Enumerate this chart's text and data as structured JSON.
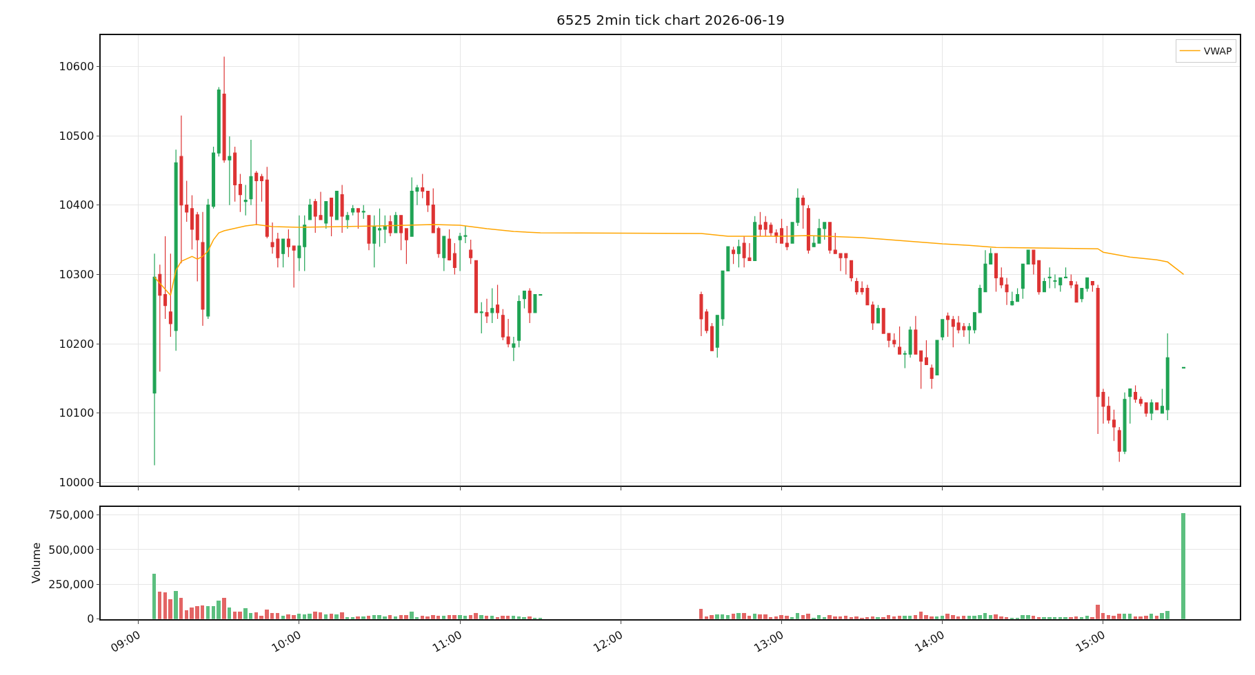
{
  "chart_data": [
    {
      "type": "candlestick",
      "title": "6525 2min tick chart 2026-06-19",
      "legend": "top right",
      "grid": true,
      "tick_labels": "y",
      "xlim": [
        "2026-06-19T08:46",
        "2026-06-19T15:51"
      ],
      "xticks": [
        {
          "value": "2026-06-19T09:00",
          "label": null
        },
        {
          "value": "2026-06-19T10:00",
          "label": null
        },
        {
          "value": "2026-06-19T11:00",
          "label": null
        },
        {
          "value": "2026-06-19T12:00",
          "label": null
        },
        {
          "value": "2026-06-19T13:00",
          "label": null
        },
        {
          "value": "2026-06-19T14:00",
          "label": null
        },
        {
          "value": "2026-06-19T15:00",
          "label": null
        }
      ],
      "ylim": [
        9996,
        10645
      ],
      "yticks": [
        10000,
        10100,
        10200,
        10300,
        10400,
        10500,
        10600
      ],
      "x": [
        "2026-06-19T09:06",
        "2026-06-19T09:08",
        "2026-06-19T09:10",
        "2026-06-19T09:12",
        "2026-06-19T09:14",
        "2026-06-19T09:16",
        "2026-06-19T09:18",
        "2026-06-19T09:20",
        "2026-06-19T09:22",
        "2026-06-19T09:24",
        "2026-06-19T09:26",
        "2026-06-19T09:28",
        "2026-06-19T09:30",
        "2026-06-19T09:32",
        "2026-06-19T09:34",
        "2026-06-19T09:36",
        "2026-06-19T09:38",
        "2026-06-19T09:40",
        "2026-06-19T09:42",
        "2026-06-19T09:44",
        "2026-06-19T09:46",
        "2026-06-19T09:48",
        "2026-06-19T09:50",
        "2026-06-19T09:52",
        "2026-06-19T09:54",
        "2026-06-19T09:56",
        "2026-06-19T09:58",
        "2026-06-19T10:00",
        "2026-06-19T10:02",
        "2026-06-19T10:04",
        "2026-06-19T10:06",
        "2026-06-19T10:08",
        "2026-06-19T10:10",
        "2026-06-19T10:12",
        "2026-06-19T10:14",
        "2026-06-19T10:16",
        "2026-06-19T10:18",
        "2026-06-19T10:20",
        "2026-06-19T10:22",
        "2026-06-19T10:24",
        "2026-06-19T10:26",
        "2026-06-19T10:28",
        "2026-06-19T10:30",
        "2026-06-19T10:32",
        "2026-06-19T10:34",
        "2026-06-19T10:36",
        "2026-06-19T10:38",
        "2026-06-19T10:40",
        "2026-06-19T10:42",
        "2026-06-19T10:44",
        "2026-06-19T10:46",
        "2026-06-19T10:48",
        "2026-06-19T10:50",
        "2026-06-19T10:52",
        "2026-06-19T10:54",
        "2026-06-19T10:56",
        "2026-06-19T10:58",
        "2026-06-19T11:00",
        "2026-06-19T11:02",
        "2026-06-19T11:04",
        "2026-06-19T11:06",
        "2026-06-19T11:08",
        "2026-06-19T11:10",
        "2026-06-19T11:12",
        "2026-06-19T11:14",
        "2026-06-19T11:16",
        "2026-06-19T11:18",
        "2026-06-19T11:20",
        "2026-06-19T11:22",
        "2026-06-19T11:24",
        "2026-06-19T11:26",
        "2026-06-19T11:28",
        "2026-06-19T11:30",
        "2026-06-19T12:30",
        "2026-06-19T12:32",
        "2026-06-19T12:34",
        "2026-06-19T12:36",
        "2026-06-19T12:38",
        "2026-06-19T12:40",
        "2026-06-19T12:42",
        "2026-06-19T12:44",
        "2026-06-19T12:46",
        "2026-06-19T12:48",
        "2026-06-19T12:50",
        "2026-06-19T12:52",
        "2026-06-19T12:54",
        "2026-06-19T12:56",
        "2026-06-19T12:58",
        "2026-06-19T13:00",
        "2026-06-19T13:02",
        "2026-06-19T13:04",
        "2026-06-19T13:06",
        "2026-06-19T13:08",
        "2026-06-19T13:10",
        "2026-06-19T13:12",
        "2026-06-19T13:14",
        "2026-06-19T13:16",
        "2026-06-19T13:18",
        "2026-06-19T13:20",
        "2026-06-19T13:22",
        "2026-06-19T13:24",
        "2026-06-19T13:26",
        "2026-06-19T13:28",
        "2026-06-19T13:30",
        "2026-06-19T13:32",
        "2026-06-19T13:34",
        "2026-06-19T13:36",
        "2026-06-19T13:38",
        "2026-06-19T13:40",
        "2026-06-19T13:42",
        "2026-06-19T13:44",
        "2026-06-19T13:46",
        "2026-06-19T13:48",
        "2026-06-19T13:50",
        "2026-06-19T13:52",
        "2026-06-19T13:54",
        "2026-06-19T13:56",
        "2026-06-19T13:58",
        "2026-06-19T14:00",
        "2026-06-19T14:02",
        "2026-06-19T14:04",
        "2026-06-19T14:06",
        "2026-06-19T14:08",
        "2026-06-19T14:10",
        "2026-06-19T14:12",
        "2026-06-19T14:14",
        "2026-06-19T14:16",
        "2026-06-19T14:18",
        "2026-06-19T14:20",
        "2026-06-19T14:22",
        "2026-06-19T14:24",
        "2026-06-19T14:26",
        "2026-06-19T14:28",
        "2026-06-19T14:30",
        "2026-06-19T14:32",
        "2026-06-19T14:34",
        "2026-06-19T14:36",
        "2026-06-19T14:38",
        "2026-06-19T14:40",
        "2026-06-19T14:42",
        "2026-06-19T14:44",
        "2026-06-19T14:46",
        "2026-06-19T14:48",
        "2026-06-19T14:50",
        "2026-06-19T14:52",
        "2026-06-19T14:54",
        "2026-06-19T14:56",
        "2026-06-19T14:58",
        "2026-06-19T15:00",
        "2026-06-19T15:02",
        "2026-06-19T15:04",
        "2026-06-19T15:06",
        "2026-06-19T15:08",
        "2026-06-19T15:10",
        "2026-06-19T15:12",
        "2026-06-19T15:14",
        "2026-06-19T15:16",
        "2026-06-19T15:18",
        "2026-06-19T15:20",
        "2026-06-19T15:22",
        "2026-06-19T15:24",
        "2026-06-19T15:30"
      ],
      "ohlc": [
        [
          10129,
          10330,
          10025,
          10296
        ],
        [
          10300,
          10314,
          10160,
          10270
        ],
        [
          10271,
          10355,
          10236,
          10255
        ],
        [
          10246,
          10330,
          10210,
          10229
        ],
        [
          10219,
          10480,
          10190,
          10461
        ],
        [
          10470,
          10529,
          10316,
          10400
        ],
        [
          10400,
          10435,
          10376,
          10390
        ],
        [
          10395,
          10414,
          10336,
          10365
        ],
        [
          10386,
          10390,
          10290,
          10350
        ],
        [
          10346,
          10390,
          10226,
          10250
        ],
        [
          10240,
          10409,
          10236,
          10400
        ],
        [
          10398,
          10484,
          10395,
          10475
        ],
        [
          10475,
          10570,
          10470,
          10566
        ],
        [
          10560,
          10614,
          10461,
          10465
        ],
        [
          10465,
          10499,
          10400,
          10470
        ],
        [
          10475,
          10484,
          10405,
          10429
        ],
        [
          10430,
          10445,
          10390,
          10415
        ],
        [
          10405,
          10429,
          10385,
          10407
        ],
        [
          10409,
          10494,
          10400,
          10441
        ],
        [
          10446,
          10449,
          10372,
          10435
        ],
        [
          10441,
          10445,
          10405,
          10435
        ],
        [
          10436,
          10455,
          10352,
          10355
        ],
        [
          10346,
          10375,
          10330,
          10340
        ],
        [
          10351,
          10360,
          10310,
          10324
        ],
        [
          10330,
          10351,
          10310,
          10351
        ],
        [
          10351,
          10365,
          10325,
          10340
        ],
        [
          10341,
          10341,
          10281,
          10335
        ],
        [
          10324,
          10385,
          10305,
          10341
        ],
        [
          10340,
          10385,
          10305,
          10371
        ],
        [
          10379,
          10409,
          10379,
          10400
        ],
        [
          10405,
          10409,
          10360,
          10384
        ],
        [
          10385,
          10419,
          10379,
          10379
        ],
        [
          10374,
          10405,
          10366,
          10405
        ],
        [
          10410,
          10410,
          10355,
          10384
        ],
        [
          10379,
          10420,
          10379,
          10420
        ],
        [
          10415,
          10429,
          10360,
          10384
        ],
        [
          10379,
          10390,
          10366,
          10385
        ],
        [
          10390,
          10400,
          10385,
          10395
        ],
        [
          10395,
          10395,
          10366,
          10390
        ],
        [
          10390,
          10400,
          10380,
          10391
        ],
        [
          10385,
          10385,
          10335,
          10345
        ],
        [
          10345,
          10385,
          10310,
          10369
        ],
        [
          10364,
          10395,
          10340,
          10366
        ],
        [
          10365,
          10385,
          10345,
          10370
        ],
        [
          10376,
          10385,
          10355,
          10360
        ],
        [
          10360,
          10390,
          10360,
          10385
        ],
        [
          10385,
          10385,
          10335,
          10360
        ],
        [
          10366,
          10366,
          10315,
          10350
        ],
        [
          10355,
          10440,
          10355,
          10420
        ],
        [
          10420,
          10429,
          10400,
          10425
        ],
        [
          10425,
          10445,
          10410,
          10420
        ],
        [
          10420,
          10420,
          10390,
          10400
        ],
        [
          10400,
          10424,
          10360,
          10360
        ],
        [
          10366,
          10369,
          10324,
          10330
        ],
        [
          10324,
          10355,
          10305,
          10355
        ],
        [
          10351,
          10365,
          10320,
          10321
        ],
        [
          10330,
          10345,
          10300,
          10310
        ],
        [
          10350,
          10360,
          10305,
          10355
        ],
        [
          10355,
          10370,
          10345,
          10356
        ],
        [
          10335,
          10350,
          10315,
          10324
        ],
        [
          10320,
          10320,
          10245,
          10245
        ],
        [
          10245,
          10260,
          10215,
          10246
        ],
        [
          10245,
          10265,
          10230,
          10240
        ],
        [
          10245,
          10280,
          10230,
          10251
        ],
        [
          10256,
          10285,
          10236,
          10245
        ],
        [
          10241,
          10250,
          10205,
          10210
        ],
        [
          10210,
          10236,
          10195,
          10200
        ],
        [
          10195,
          10210,
          10175,
          10200
        ],
        [
          10205,
          10270,
          10195,
          10261
        ],
        [
          10265,
          10276,
          10251,
          10276
        ],
        [
          10276,
          10280,
          10230,
          10245
        ],
        [
          10245,
          10271,
          10245,
          10271
        ],
        [
          10270,
          10271,
          10270,
          10271
        ],
        [
          10271,
          10275,
          10211,
          10236
        ],
        [
          10246,
          10250,
          10215,
          10219
        ],
        [
          10225,
          10230,
          10190,
          10190
        ],
        [
          10195,
          10241,
          10180,
          10241
        ],
        [
          10236,
          10305,
          10226,
          10305
        ],
        [
          10305,
          10340,
          10305,
          10340
        ],
        [
          10335,
          10340,
          10315,
          10330
        ],
        [
          10330,
          10350,
          10310,
          10340
        ],
        [
          10345,
          10355,
          10310,
          10324
        ],
        [
          10324,
          10345,
          10320,
          10320
        ],
        [
          10320,
          10384,
          10320,
          10375
        ],
        [
          10371,
          10390,
          10355,
          10365
        ],
        [
          10375,
          10384,
          10355,
          10365
        ],
        [
          10371,
          10375,
          10355,
          10360
        ],
        [
          10360,
          10365,
          10345,
          10355
        ],
        [
          10366,
          10380,
          10345,
          10345
        ],
        [
          10345,
          10370,
          10335,
          10340
        ],
        [
          10345,
          10375,
          10345,
          10375
        ],
        [
          10375,
          10424,
          10370,
          10410
        ],
        [
          10410,
          10414,
          10366,
          10400
        ],
        [
          10395,
          10400,
          10330,
          10335
        ],
        [
          10340,
          10355,
          10340,
          10345
        ],
        [
          10345,
          10380,
          10345,
          10366
        ],
        [
          10366,
          10375,
          10350,
          10375
        ],
        [
          10375,
          10375,
          10330,
          10335
        ],
        [
          10335,
          10360,
          10330,
          10330
        ],
        [
          10330,
          10330,
          10305,
          10324
        ],
        [
          10330,
          10330,
          10300,
          10324
        ],
        [
          10320,
          10320,
          10290,
          10295
        ],
        [
          10290,
          10295,
          10271,
          10275
        ],
        [
          10280,
          10290,
          10271,
          10275
        ],
        [
          10280,
          10285,
          10256,
          10256
        ],
        [
          10256,
          10261,
          10220,
          10230
        ],
        [
          10230,
          10256,
          10230,
          10251
        ],
        [
          10251,
          10251,
          10215,
          10215
        ],
        [
          10215,
          10215,
          10195,
          10205
        ],
        [
          10205,
          10215,
          10195,
          10200
        ],
        [
          10195,
          10225,
          10185,
          10185
        ],
        [
          10185,
          10190,
          10165,
          10186
        ],
        [
          10185,
          10225,
          10180,
          10220
        ],
        [
          10220,
          10240,
          10185,
          10185
        ],
        [
          10190,
          10190,
          10135,
          10175
        ],
        [
          10180,
          10205,
          10170,
          10170
        ],
        [
          10165,
          10170,
          10135,
          10150
        ],
        [
          10155,
          10205,
          10155,
          10205
        ],
        [
          10210,
          10235,
          10205,
          10235
        ],
        [
          10240,
          10245,
          10210,
          10235
        ],
        [
          10235,
          10240,
          10195,
          10225
        ],
        [
          10230,
          10240,
          10215,
          10220
        ],
        [
          10225,
          10230,
          10210,
          10220
        ],
        [
          10220,
          10230,
          10200,
          10225
        ],
        [
          10220,
          10245,
          10215,
          10245
        ],
        [
          10245,
          10285,
          10245,
          10280
        ],
        [
          10275,
          10335,
          10275,
          10315
        ],
        [
          10315,
          10338,
          10315,
          10330
        ],
        [
          10330,
          10330,
          10275,
          10295
        ],
        [
          10295,
          10310,
          10280,
          10285
        ],
        [
          10285,
          10295,
          10256,
          10275
        ],
        [
          10256,
          10275,
          10255,
          10261
        ],
        [
          10261,
          10280,
          10261,
          10271
        ],
        [
          10280,
          10315,
          10265,
          10315
        ],
        [
          10315,
          10335,
          10315,
          10335
        ],
        [
          10335,
          10335,
          10300,
          10315
        ],
        [
          10320,
          10320,
          10271,
          10275
        ],
        [
          10275,
          10295,
          10275,
          10290
        ],
        [
          10295,
          10310,
          10280,
          10296
        ],
        [
          10290,
          10300,
          10280,
          10291
        ],
        [
          10285,
          10295,
          10275,
          10295
        ],
        [
          10295,
          10310,
          10295,
          10296
        ],
        [
          10290,
          10300,
          10280,
          10285
        ],
        [
          10285,
          10290,
          10260,
          10260
        ],
        [
          10265,
          10280,
          10260,
          10280
        ],
        [
          10280,
          10295,
          10275,
          10295
        ],
        [
          10290,
          10290,
          10275,
          10285
        ],
        [
          10280,
          10285,
          10070,
          10124
        ],
        [
          10130,
          10135,
          10085,
          10110
        ],
        [
          10110,
          10124,
          10085,
          10090
        ],
        [
          10090,
          10105,
          10060,
          10080
        ],
        [
          10075,
          10080,
          10030,
          10045
        ],
        [
          10045,
          10130,
          10041,
          10120
        ],
        [
          10124,
          10135,
          10085,
          10135
        ],
        [
          10130,
          10140,
          10115,
          10120
        ],
        [
          10120,
          10124,
          10110,
          10114
        ],
        [
          10115,
          10115,
          10095,
          10100
        ],
        [
          10100,
          10120,
          10090,
          10115
        ],
        [
          10115,
          10115,
          10105,
          10105
        ],
        [
          10100,
          10135,
          10100,
          10110
        ],
        [
          10105,
          10215,
          10090,
          10180
        ],
        [
          10165,
          10166,
          10165,
          10166
        ]
      ],
      "colors": [
        "#1fa354",
        "#dd3333",
        "#dd3333",
        "#dd3333",
        "#1fa354",
        "#dd3333",
        "#dd3333",
        "#dd3333",
        "#dd3333",
        "#dd3333",
        "#1fa354",
        "#1fa354",
        "#1fa354",
        "#dd3333",
        "#1fa354",
        "#dd3333",
        "#dd3333",
        "#1fa354",
        "#1fa354",
        "#dd3333",
        "#dd3333",
        "#dd3333",
        "#dd3333",
        "#dd3333",
        "#1fa354",
        "#dd3333",
        "#dd3333",
        "#1fa354",
        "#1fa354",
        "#1fa354",
        "#dd3333",
        "#dd3333",
        "#1fa354",
        "#dd3333",
        "#1fa354",
        "#dd3333",
        "#1fa354",
        "#1fa354",
        "#dd3333",
        "#1fa354",
        "#dd3333",
        "#1fa354",
        "#1fa354",
        "#1fa354",
        "#dd3333",
        "#1fa354",
        "#dd3333",
        "#dd3333",
        "#1fa354",
        "#1fa354",
        "#dd3333",
        "#dd3333",
        "#dd3333",
        "#dd3333",
        "#1fa354",
        "#dd3333",
        "#dd3333",
        "#1fa354",
        "#1fa354",
        "#dd3333",
        "#dd3333",
        "#1fa354",
        "#dd3333",
        "#1fa354",
        "#dd3333",
        "#dd3333",
        "#dd3333",
        "#1fa354",
        "#1fa354",
        "#1fa354",
        "#dd3333",
        "#1fa354",
        "#1fa354",
        "#dd3333",
        "#dd3333",
        "#dd3333",
        "#1fa354",
        "#1fa354",
        "#1fa354",
        "#dd3333",
        "#1fa354",
        "#dd3333",
        "#dd3333",
        "#1fa354",
        "#dd3333",
        "#dd3333",
        "#dd3333",
        "#dd3333",
        "#dd3333",
        "#dd3333",
        "#1fa354",
        "#1fa354",
        "#dd3333",
        "#dd3333",
        "#1fa354",
        "#1fa354",
        "#1fa354",
        "#dd3333",
        "#dd3333",
        "#dd3333",
        "#dd3333",
        "#dd3333",
        "#dd3333",
        "#dd3333",
        "#dd3333",
        "#dd3333",
        "#1fa354",
        "#dd3333",
        "#dd3333",
        "#dd3333",
        "#dd3333",
        "#1fa354",
        "#1fa354",
        "#dd3333",
        "#dd3333",
        "#dd3333",
        "#dd3333",
        "#1fa354",
        "#1fa354",
        "#dd3333",
        "#dd3333",
        "#dd3333",
        "#dd3333",
        "#1fa354",
        "#1fa354",
        "#1fa354",
        "#1fa354",
        "#1fa354",
        "#dd3333",
        "#dd3333",
        "#dd3333",
        "#1fa354",
        "#1fa354",
        "#1fa354",
        "#1fa354",
        "#dd3333",
        "#dd3333",
        "#1fa354",
        "#1fa354",
        "#1fa354",
        "#1fa354",
        "#1fa354",
        "#dd3333",
        "#dd3333",
        "#1fa354",
        "#1fa354",
        "#dd3333",
        "#dd3333",
        "#dd3333",
        "#dd3333",
        "#dd3333",
        "#dd3333",
        "#1fa354",
        "#1fa354",
        "#dd3333",
        "#dd3333",
        "#dd3333",
        "#1fa354",
        "#dd3333",
        "#1fa354",
        "#1fa354",
        "#1fa354"
      ],
      "series": [
        {
          "type": "line",
          "name": "VWAP",
          "color": "#ffa500",
          "x": [
            "2026-06-19T09:06",
            "2026-06-19T09:12",
            "2026-06-19T09:14",
            "2026-06-19T09:16",
            "2026-06-19T09:20",
            "2026-06-19T09:22",
            "2026-06-19T09:24",
            "2026-06-19T09:26",
            "2026-06-19T09:28",
            "2026-06-19T09:30",
            "2026-06-19T09:32",
            "2026-06-19T09:40",
            "2026-06-19T09:44",
            "2026-06-19T09:50",
            "2026-06-19T10:00",
            "2026-06-19T10:30",
            "2026-06-19T10:50",
            "2026-06-19T11:00",
            "2026-06-19T11:02",
            "2026-06-19T11:10",
            "2026-06-19T11:20",
            "2026-06-19T11:30",
            "2026-06-19T12:30",
            "2026-06-19T12:40",
            "2026-06-19T13:00",
            "2026-06-19T13:10",
            "2026-06-19T13:30",
            "2026-06-19T13:50",
            "2026-06-19T14:00",
            "2026-06-19T14:10",
            "2026-06-19T14:20",
            "2026-06-19T14:40",
            "2026-06-19T14:58",
            "2026-06-19T15:00",
            "2026-06-19T15:10",
            "2026-06-19T15:20",
            "2026-06-19T15:24",
            "2026-06-19T15:30"
          ],
          "values": [
            10296,
            10270,
            10306,
            10319,
            10326,
            10322,
            10326,
            10334,
            10350,
            10360,
            10363,
            10370,
            10372,
            10369,
            10368,
            10370,
            10372,
            10371,
            10370,
            10366,
            10362,
            10360,
            10359,
            10355,
            10355,
            10356,
            10353,
            10347,
            10344,
            10342,
            10339,
            10338,
            10337,
            10332,
            10325,
            10321,
            10318,
            10300
          ]
        }
      ]
    },
    {
      "type": "bar",
      "ylabel": "Volume",
      "grid": true,
      "xlim": [
        "2026-06-19T08:46",
        "2026-06-19T15:51"
      ],
      "xticks": [
        {
          "value": "2026-06-19T09:00",
          "label": "09:00"
        },
        {
          "value": "2026-06-19T10:00",
          "label": "10:00"
        },
        {
          "value": "2026-06-19T11:00",
          "label": "11:00"
        },
        {
          "value": "2026-06-19T12:00",
          "label": "12:00"
        },
        {
          "value": "2026-06-19T13:00",
          "label": "13:00"
        },
        {
          "value": "2026-06-19T14:00",
          "label": "14:00"
        },
        {
          "value": "2026-06-19T15:00",
          "label": "15:00"
        }
      ],
      "ylim": [
        0,
        808000
      ],
      "yticks": [
        0,
        {
          "value": 250000,
          "label": "250,000"
        },
        {
          "value": 500000,
          "label": "500,000"
        },
        {
          "value": 750000,
          "label": "750,000"
        }
      ],
      "x": [
        "2026-06-19T09:06",
        "2026-06-19T09:08",
        "2026-06-19T09:10",
        "2026-06-19T09:12",
        "2026-06-19T09:14",
        "2026-06-19T09:16",
        "2026-06-19T09:18",
        "2026-06-19T09:20",
        "2026-06-19T09:22",
        "2026-06-19T09:24",
        "2026-06-19T09:26",
        "2026-06-19T09:28",
        "2026-06-19T09:30",
        "2026-06-19T09:32",
        "2026-06-19T09:34",
        "2026-06-19T09:36",
        "2026-06-19T09:38",
        "2026-06-19T09:40",
        "2026-06-19T09:42",
        "2026-06-19T09:44",
        "2026-06-19T09:46",
        "2026-06-19T09:48",
        "2026-06-19T09:50",
        "2026-06-19T09:52",
        "2026-06-19T09:54",
        "2026-06-19T09:56",
        "2026-06-19T09:58",
        "2026-06-19T10:00",
        "2026-06-19T10:02",
        "2026-06-19T10:04",
        "2026-06-19T10:06",
        "2026-06-19T10:08",
        "2026-06-19T10:10",
        "2026-06-19T10:12",
        "2026-06-19T10:14",
        "2026-06-19T10:16",
        "2026-06-19T10:18",
        "2026-06-19T10:20",
        "2026-06-19T10:22",
        "2026-06-19T10:24",
        "2026-06-19T10:26",
        "2026-06-19T10:28",
        "2026-06-19T10:30",
        "2026-06-19T10:32",
        "2026-06-19T10:34",
        "2026-06-19T10:36",
        "2026-06-19T10:38",
        "2026-06-19T10:40",
        "2026-06-19T10:42",
        "2026-06-19T10:44",
        "2026-06-19T10:46",
        "2026-06-19T10:48",
        "2026-06-19T10:50",
        "2026-06-19T10:52",
        "2026-06-19T10:54",
        "2026-06-19T10:56",
        "2026-06-19T10:58",
        "2026-06-19T11:00",
        "2026-06-19T11:02",
        "2026-06-19T11:04",
        "2026-06-19T11:06",
        "2026-06-19T11:08",
        "2026-06-19T11:10",
        "2026-06-19T11:12",
        "2026-06-19T11:14",
        "2026-06-19T11:16",
        "2026-06-19T11:18",
        "2026-06-19T11:20",
        "2026-06-19T11:22",
        "2026-06-19T11:24",
        "2026-06-19T11:26",
        "2026-06-19T11:28",
        "2026-06-19T11:30",
        "2026-06-19T12:30",
        "2026-06-19T12:32",
        "2026-06-19T12:34",
        "2026-06-19T12:36",
        "2026-06-19T12:38",
        "2026-06-19T12:40",
        "2026-06-19T12:42",
        "2026-06-19T12:44",
        "2026-06-19T12:46",
        "2026-06-19T12:48",
        "2026-06-19T12:50",
        "2026-06-19T12:52",
        "2026-06-19T12:54",
        "2026-06-19T12:56",
        "2026-06-19T12:58",
        "2026-06-19T13:00",
        "2026-06-19T13:02",
        "2026-06-19T13:04",
        "2026-06-19T13:06",
        "2026-06-19T13:08",
        "2026-06-19T13:10",
        "2026-06-19T13:12",
        "2026-06-19T13:14",
        "2026-06-19T13:16",
        "2026-06-19T13:18",
        "2026-06-19T13:20",
        "2026-06-19T13:22",
        "2026-06-19T13:24",
        "2026-06-19T13:26",
        "2026-06-19T13:28",
        "2026-06-19T13:30",
        "2026-06-19T13:32",
        "2026-06-19T13:34",
        "2026-06-19T13:36",
        "2026-06-19T13:38",
        "2026-06-19T13:40",
        "2026-06-19T13:42",
        "2026-06-19T13:44",
        "2026-06-19T13:46",
        "2026-06-19T13:48",
        "2026-06-19T13:50",
        "2026-06-19T13:52",
        "2026-06-19T13:54",
        "2026-06-19T13:56",
        "2026-06-19T13:58",
        "2026-06-19T14:00",
        "2026-06-19T14:02",
        "2026-06-19T14:04",
        "2026-06-19T14:06",
        "2026-06-19T14:08",
        "2026-06-19T14:10",
        "2026-06-19T14:12",
        "2026-06-19T14:14",
        "2026-06-19T14:16",
        "2026-06-19T14:18",
        "2026-06-19T14:20",
        "2026-06-19T14:22",
        "2026-06-19T14:24",
        "2026-06-19T14:26",
        "2026-06-19T14:28",
        "2026-06-19T14:30",
        "2026-06-19T14:32",
        "2026-06-19T14:34",
        "2026-06-19T14:36",
        "2026-06-19T14:38",
        "2026-06-19T14:40",
        "2026-06-19T14:42",
        "2026-06-19T14:44",
        "2026-06-19T14:46",
        "2026-06-19T14:48",
        "2026-06-19T14:50",
        "2026-06-19T14:52",
        "2026-06-19T14:54",
        "2026-06-19T14:56",
        "2026-06-19T14:58",
        "2026-06-19T15:00",
        "2026-06-19T15:02",
        "2026-06-19T15:04",
        "2026-06-19T15:06",
        "2026-06-19T15:08",
        "2026-06-19T15:10",
        "2026-06-19T15:12",
        "2026-06-19T15:14",
        "2026-06-19T15:16",
        "2026-06-19T15:18",
        "2026-06-19T15:20",
        "2026-06-19T15:22",
        "2026-06-19T15:24",
        "2026-06-19T15:30"
      ],
      "values": [
        328000,
        196000,
        190000,
        143000,
        200000,
        153000,
        64000,
        83000,
        95000,
        99000,
        93000,
        93000,
        132000,
        153000,
        83000,
        54000,
        54000,
        79000,
        45000,
        50000,
        25000,
        70000,
        45000,
        45000,
        25000,
        35000,
        29000,
        39000,
        35000,
        39000,
        54000,
        50000,
        35000,
        39000,
        35000,
        50000,
        14000,
        14000,
        19000,
        19000,
        25000,
        29000,
        29000,
        19000,
        29000,
        19000,
        29000,
        29000,
        54000,
        14000,
        25000,
        19000,
        29000,
        25000,
        25000,
        29000,
        29000,
        29000,
        25000,
        29000,
        45000,
        29000,
        25000,
        25000,
        14000,
        25000,
        25000,
        25000,
        19000,
        14000,
        19000,
        10000,
        6000,
        74000,
        19000,
        26000,
        31000,
        31000,
        26000,
        36000,
        41000,
        41000,
        21000,
        36000,
        31000,
        31000,
        14000,
        19000,
        26000,
        21000,
        14000,
        45000,
        26000,
        36000,
        10000,
        26000,
        14000,
        26000,
        19000,
        19000,
        21000,
        12000,
        17000,
        10000,
        14000,
        17000,
        14000,
        14000,
        26000,
        17000,
        21000,
        21000,
        21000,
        26000,
        55000,
        26000,
        17000,
        17000,
        21000,
        36000,
        26000,
        17000,
        21000,
        21000,
        21000,
        26000,
        45000,
        26000,
        31000,
        17000,
        12000,
        7000,
        7000,
        26000,
        26000,
        21000,
        12000,
        12000,
        12000,
        12000,
        12000,
        12000,
        12000,
        17000,
        12000,
        21000,
        12000,
        105000,
        43000,
        26000,
        21000,
        36000,
        36000,
        36000,
        17000,
        17000,
        21000,
        36000,
        21000,
        41000,
        57000,
        764000
      ],
      "colors": [
        "#5cbf7f",
        "#e36565",
        "#e36565",
        "#e36565",
        "#5cbf7f",
        "#e36565",
        "#e36565",
        "#e36565",
        "#e36565",
        "#e36565",
        "#5cbf7f",
        "#5cbf7f",
        "#5cbf7f",
        "#e36565",
        "#5cbf7f",
        "#e36565",
        "#e36565",
        "#5cbf7f",
        "#5cbf7f",
        "#e36565",
        "#e36565",
        "#e36565",
        "#e36565",
        "#e36565",
        "#5cbf7f",
        "#e36565",
        "#e36565",
        "#5cbf7f",
        "#5cbf7f",
        "#5cbf7f",
        "#e36565",
        "#e36565",
        "#5cbf7f",
        "#e36565",
        "#5cbf7f",
        "#e36565",
        "#5cbf7f",
        "#5cbf7f",
        "#e36565",
        "#5cbf7f",
        "#e36565",
        "#5cbf7f",
        "#5cbf7f",
        "#5cbf7f",
        "#e36565",
        "#5cbf7f",
        "#e36565",
        "#e36565",
        "#5cbf7f",
        "#5cbf7f",
        "#e36565",
        "#e36565",
        "#e36565",
        "#e36565",
        "#5cbf7f",
        "#e36565",
        "#e36565",
        "#5cbf7f",
        "#5cbf7f",
        "#e36565",
        "#e36565",
        "#5cbf7f",
        "#e36565",
        "#5cbf7f",
        "#e36565",
        "#e36565",
        "#e36565",
        "#5cbf7f",
        "#5cbf7f",
        "#5cbf7f",
        "#e36565",
        "#5cbf7f",
        "#5cbf7f",
        "#e36565",
        "#e36565",
        "#e36565",
        "#5cbf7f",
        "#5cbf7f",
        "#5cbf7f",
        "#e36565",
        "#5cbf7f",
        "#e36565",
        "#e36565",
        "#5cbf7f",
        "#e36565",
        "#e36565",
        "#e36565",
        "#e36565",
        "#e36565",
        "#e36565",
        "#5cbf7f",
        "#5cbf7f",
        "#e36565",
        "#e36565",
        "#5cbf7f",
        "#5cbf7f",
        "#5cbf7f",
        "#e36565",
        "#e36565",
        "#e36565",
        "#e36565",
        "#e36565",
        "#e36565",
        "#e36565",
        "#e36565",
        "#e36565",
        "#5cbf7f",
        "#e36565",
        "#e36565",
        "#e36565",
        "#e36565",
        "#5cbf7f",
        "#5cbf7f",
        "#e36565",
        "#e36565",
        "#e36565",
        "#e36565",
        "#5cbf7f",
        "#5cbf7f",
        "#e36565",
        "#e36565",
        "#e36565",
        "#e36565",
        "#5cbf7f",
        "#5cbf7f",
        "#5cbf7f",
        "#5cbf7f",
        "#5cbf7f",
        "#e36565",
        "#e36565",
        "#e36565",
        "#5cbf7f",
        "#5cbf7f",
        "#5cbf7f",
        "#5cbf7f",
        "#e36565",
        "#e36565",
        "#5cbf7f",
        "#5cbf7f",
        "#5cbf7f",
        "#5cbf7f",
        "#5cbf7f",
        "#e36565",
        "#e36565",
        "#5cbf7f",
        "#5cbf7f",
        "#e36565",
        "#e36565",
        "#e36565",
        "#e36565",
        "#e36565",
        "#e36565",
        "#5cbf7f",
        "#5cbf7f",
        "#e36565",
        "#e36565",
        "#e36565",
        "#5cbf7f",
        "#e36565",
        "#5cbf7f",
        "#5cbf7f",
        "#5cbf7f"
      ]
    }
  ]
}
